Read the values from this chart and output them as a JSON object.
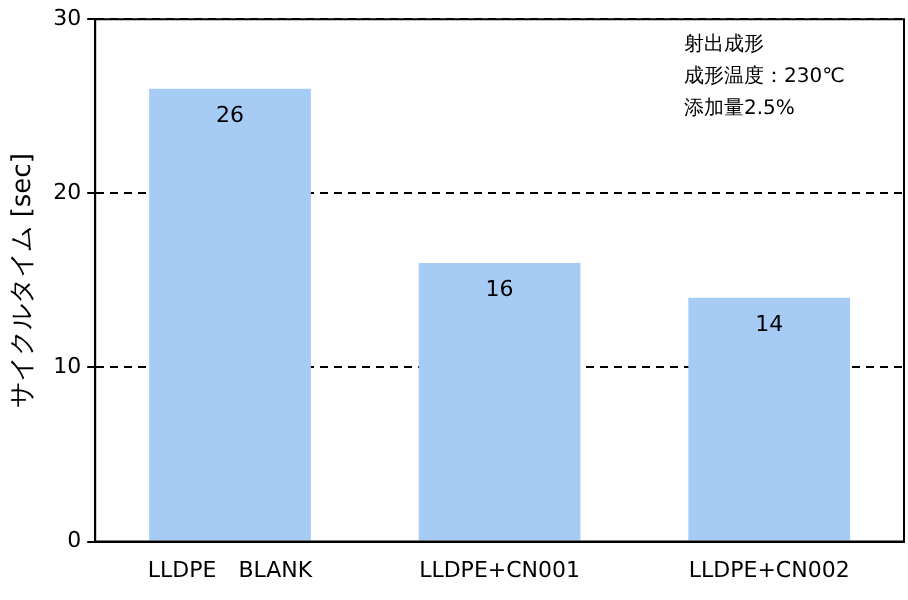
{
  "chart_data": {
    "type": "bar",
    "ylabel": "サイクルタイム [sec]",
    "categories": [
      "LLDPE　BLANK",
      "LLDPE+CN001",
      "LLDPE+CN002"
    ],
    "values": [
      26,
      16,
      14
    ],
    "color": "#a6cbf5",
    "ylim": [
      0,
      30
    ],
    "yticks": [
      0,
      10,
      20,
      30
    ],
    "grid": "y",
    "legend": false,
    "data_labels": true,
    "annotations": [
      "射出成形",
      "成形温度：230℃",
      "添加量2.5%"
    ]
  }
}
